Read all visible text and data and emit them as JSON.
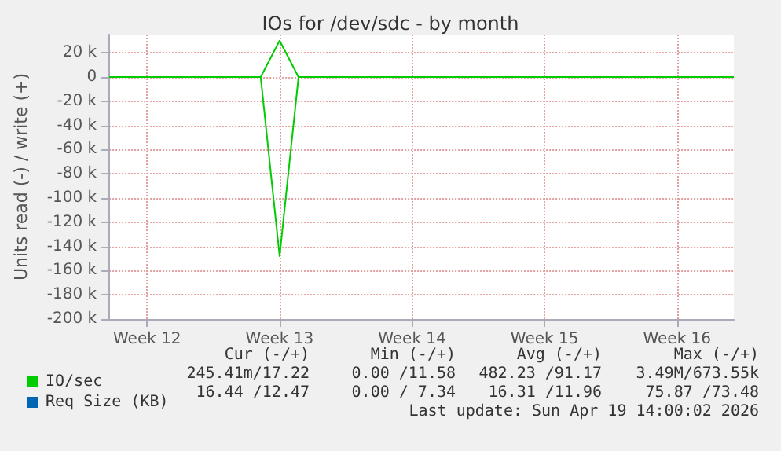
{
  "chart_data": {
    "type": "line",
    "title": "IOs for /dev/sdc - by month",
    "ylabel": "Units read (-) / write (+)",
    "categories": [
      null,
      null,
      "Week 12",
      null,
      null,
      null,
      null,
      null,
      null,
      "Week 13",
      null,
      null,
      null,
      null,
      null,
      null,
      "Week 14",
      null,
      null,
      null,
      null,
      null,
      null,
      "Week 15",
      null,
      null,
      null,
      null,
      null,
      null,
      "Week 16",
      null,
      null,
      null
    ],
    "ylim": [
      -200000,
      35000
    ],
    "yticks": [
      {
        "value": -200000,
        "label": "-200 k"
      },
      {
        "value": -180000,
        "label": "-180 k"
      },
      {
        "value": -160000,
        "label": "-160 k"
      },
      {
        "value": -140000,
        "label": "-140 k"
      },
      {
        "value": -120000,
        "label": "-120 k"
      },
      {
        "value": -100000,
        "label": "-100 k"
      },
      {
        "value": -80000,
        "label": "-80 k"
      },
      {
        "value": -60000,
        "label": "-60 k"
      },
      {
        "value": -40000,
        "label": "-40 k"
      },
      {
        "value": -20000,
        "label": "-20 k"
      },
      0,
      {
        "value": 20000,
        "label": "20 k"
      }
    ],
    "grid": true,
    "legend": "bottom left",
    "series": [
      {
        "name": "Req Size (KB)",
        "color": "#0066b3",
        "values": [
          null,
          null,
          null,
          null,
          null,
          null,
          null,
          null,
          null,
          null,
          null,
          null,
          null,
          null,
          null,
          null,
          null,
          null,
          null,
          null,
          null,
          null,
          null,
          null,
          null,
          null,
          null,
          null,
          null,
          null,
          null,
          null,
          null,
          null
        ]
      },
      {
        "color": "#00cc00",
        "values": [
          0,
          0,
          0,
          0,
          0,
          0,
          0,
          0,
          0,
          -148000,
          0,
          0,
          0,
          0,
          0,
          0,
          0,
          0,
          0,
          0,
          0,
          0,
          0,
          0,
          0,
          0,
          0,
          0,
          0,
          0,
          0,
          0,
          0,
          0
        ]
      },
      {
        "name": "IO/sec",
        "color": "#00cc00",
        "values": [
          0,
          0,
          0,
          0,
          0,
          0,
          0,
          0,
          0,
          30000,
          0,
          0,
          0,
          0,
          0,
          0,
          0,
          0,
          0,
          0,
          0,
          0,
          0,
          0,
          0,
          0,
          0,
          0,
          0,
          0,
          0,
          0,
          0,
          0
        ]
      }
    ],
    "annotations": [
      "Cur (-/+)",
      "Min (-/+)",
      "Avg (-/+)",
      "Max (-/+)",
      "245.41m/17.22",
      "0.00 /11.58",
      "482.23 /91.17",
      "3.49M/673.55k",
      "16.44 /12.47",
      "0.00 / 7.34",
      "16.31 /11.96",
      "75.87 /73.48",
      "Last update: Sun Apr 19 14:00:02 2026"
    ]
  }
}
